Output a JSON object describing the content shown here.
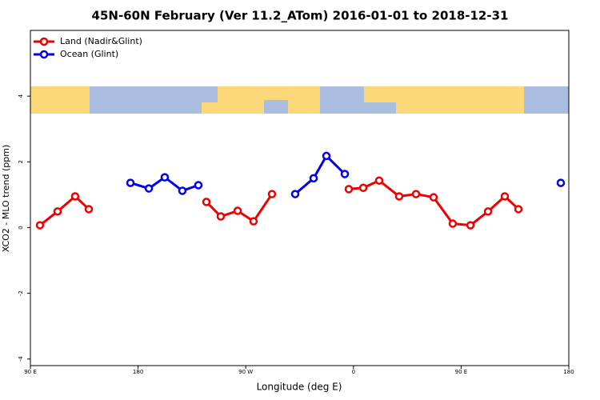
{
  "chart_data": {
    "type": "line",
    "title": "45N-60N February (Ver 11.2_ATom)   2016-01-01 to 2018-12-31",
    "x_label": "Longitude (deg E)",
    "y_label": "XCO2 - MLO trend (ppm)",
    "xlim": [
      90,
      540
    ],
    "ylim": [
      -4.2,
      6
    ],
    "xticks": [
      {
        "value": 90,
        "label": "90 E"
      },
      180,
      {
        "value": 270,
        "label": "90 W"
      },
      {
        "value": 360,
        "label": "0"
      },
      {
        "value": 450,
        "label": "90 E"
      },
      {
        "value": 540,
        "label": "180"
      }
    ],
    "yticks": [
      4,
      2,
      0,
      -2,
      -4
    ],
    "legend": "top-left",
    "series": [
      {
        "name": "Land (Nadir&Glint)",
        "color": "#ee0000",
        "x": [
          98,
          112.7,
          127.4,
          138.8,
          null,
          237.1,
          249.1,
          263.2,
          276.5,
          291.9,
          null,
          356.1,
          368.2,
          381.5,
          398.2,
          412.3,
          427.0,
          443.0,
          457.8,
          472.5,
          486.5,
          497.9
        ],
        "values": [
          0.07,
          0.49,
          0.95,
          0.56,
          null,
          0.78,
          0.34,
          0.51,
          0.19,
          1.02,
          null,
          1.17,
          1.21,
          1.43,
          0.95,
          1.02,
          0.92,
          0.12,
          0.07,
          0.49,
          0.95,
          0.56
        ]
      },
      {
        "name": "Ocean (Glint)",
        "color": "#0000ee",
        "x": [
          173.6,
          189.0,
          202.3,
          217.0,
          230.4,
          null,
          311.3,
          326.7,
          337.4,
          352.8,
          null,
          533.3
        ],
        "values": [
          1.36,
          1.19,
          1.53,
          1.12,
          1.29,
          null,
          1.02,
          1.5,
          2.18,
          1.63,
          null,
          1.36
        ]
      }
    ]
  }
}
